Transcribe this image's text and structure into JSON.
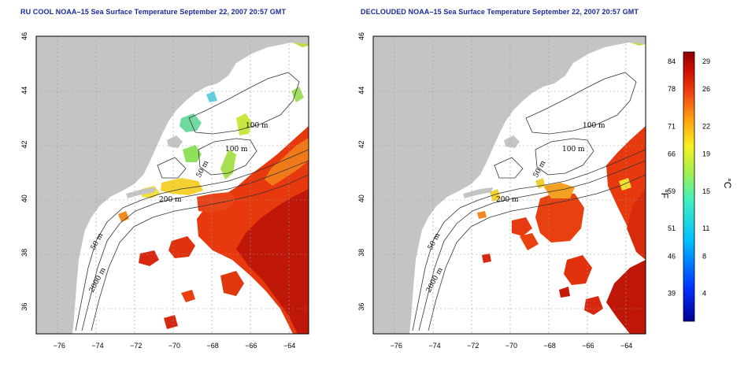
{
  "left_panel": {
    "title": "RU COOL NOAA–15 Sea Surface Temperature September 22, 2007 20:57 GMT"
  },
  "right_panel": {
    "title": "DECLOUDED NOAA–15 Sea Surface Temperature September 22, 2007 20:57 GMT"
  },
  "axes": {
    "lon_ticks": [
      "−76",
      "−74",
      "−72",
      "−70",
      "−68",
      "−66",
      "−64"
    ],
    "lat_ticks": [
      "36",
      "38",
      "40",
      "42",
      "44",
      "46"
    ],
    "lon_values": [
      -76,
      -74,
      -72,
      -70,
      -68,
      -66,
      -64
    ],
    "lat_values": [
      36,
      38,
      40,
      42,
      44,
      46
    ],
    "lon_range": [
      -77.2,
      -63.0
    ],
    "lat_range": [
      35.0,
      46.0
    ],
    "grid": "dotted"
  },
  "contour_labels": {
    "left": [
      "100 m",
      "100 m",
      "50 m",
      "200 m",
      "50 m",
      "2000 m"
    ],
    "right": [
      "100 m",
      "100 m",
      "50 m",
      "200 m",
      "50 m",
      "2000 m"
    ]
  },
  "colorbar": {
    "fahrenheit_ticks": [
      "84",
      "78",
      "71",
      "66",
      "59",
      "51",
      "46",
      "39"
    ],
    "celsius_ticks": [
      "29",
      "26",
      "22",
      "19",
      "15",
      "11",
      "8",
      "4"
    ],
    "fahrenheit_unit": "°F",
    "celsius_unit": "°C",
    "range_c": [
      1,
      30
    ]
  },
  "colors": {
    "land": "#c4c4c4",
    "title": "#1a2a9c",
    "warm_dark": "#b80000",
    "warm": "#e0300c",
    "orange": "#f07a10",
    "yellow": "#f2e02a",
    "green": "#8fe04a",
    "cyan": "#40d0e0"
  }
}
